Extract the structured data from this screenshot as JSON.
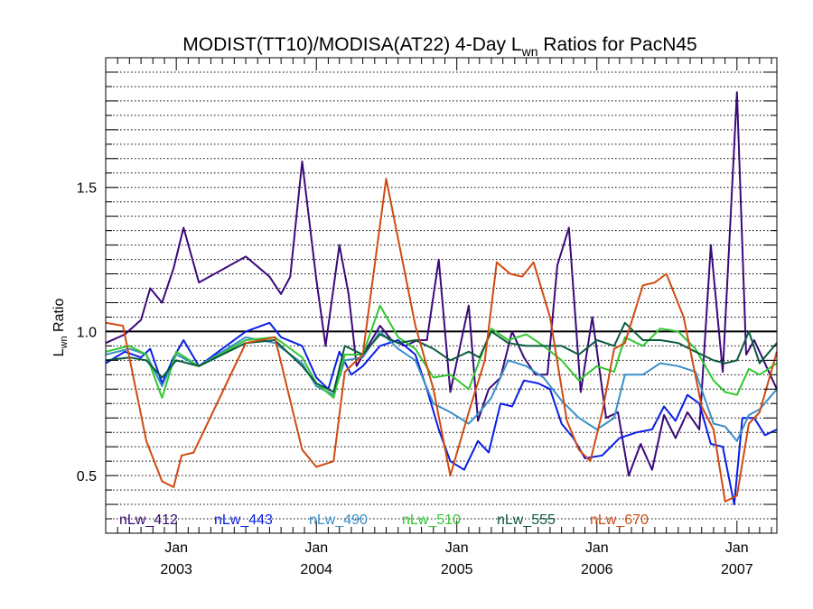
{
  "chart_data": {
    "type": "line",
    "title": {
      "prefix": "MODIST(TT10)/MODISA(AT22) 4-Day L",
      "subscript": "wn",
      "suffix": " Ratios for PacN45"
    },
    "ylabel": {
      "main": "L",
      "subscript": "wn",
      "suffix": " Ratio"
    },
    "ylim": [
      0.3,
      1.95
    ],
    "xlim": [
      "2002-07-01",
      "2007-04-15"
    ],
    "yticks": [
      0.5,
      1.0,
      1.5
    ],
    "ytick_labels": [
      "0.5",
      "1.0",
      "1.5"
    ],
    "xticks": [
      {
        "date": "2003-01-01",
        "month": "Jan",
        "year": "2003"
      },
      {
        "date": "2004-01-01",
        "month": "Jan",
        "year": "2004"
      },
      {
        "date": "2005-01-01",
        "month": "Jan",
        "year": "2005"
      },
      {
        "date": "2006-01-01",
        "month": "Jan",
        "year": "2006"
      },
      {
        "date": "2007-01-01",
        "month": "Jan",
        "year": "2007"
      }
    ],
    "grid": true,
    "grid_style": "dotted horizontal",
    "reference_line": 1.0,
    "legend_position": "bottom inside",
    "series": [
      {
        "name": "nLw_412",
        "color": "#3a0a7a",
        "points": [
          [
            "2002-07-01",
            0.96
          ],
          [
            "2002-08-20",
            0.99
          ],
          [
            "2002-10-01",
            1.04
          ],
          [
            "2002-10-25",
            1.15
          ],
          [
            "2002-11-25",
            1.1
          ],
          [
            "2002-12-25",
            1.22
          ],
          [
            "2003-01-20",
            1.36
          ],
          [
            "2003-03-01",
            1.17
          ],
          [
            "2003-07-01",
            1.26
          ],
          [
            "2003-09-01",
            1.19
          ],
          [
            "2003-10-01",
            1.13
          ],
          [
            "2003-10-25",
            1.19
          ],
          [
            "2003-11-25",
            1.59
          ],
          [
            "2004-01-01",
            1.18
          ],
          [
            "2004-01-25",
            0.95
          ],
          [
            "2004-03-01",
            1.3
          ],
          [
            "2004-03-25",
            1.13
          ],
          [
            "2004-04-15",
            0.88
          ],
          [
            "2004-05-15",
            0.95
          ],
          [
            "2004-06-15",
            1.02
          ],
          [
            "2004-07-15",
            0.97
          ],
          [
            "2004-08-20",
            0.95
          ],
          [
            "2004-09-20",
            0.97
          ],
          [
            "2004-10-15",
            0.97
          ],
          [
            "2004-11-15",
            1.25
          ],
          [
            "2004-12-15",
            0.79
          ],
          [
            "2005-02-01",
            1.09
          ],
          [
            "2005-02-25",
            0.69
          ],
          [
            "2005-03-25",
            0.8
          ],
          [
            "2005-04-25",
            0.84
          ],
          [
            "2005-05-25",
            1.0
          ],
          [
            "2005-06-25",
            0.91
          ],
          [
            "2005-07-25",
            0.85
          ],
          [
            "2005-08-25",
            0.85
          ],
          [
            "2005-09-20",
            1.23
          ],
          [
            "2005-10-20",
            1.36
          ],
          [
            "2005-11-20",
            0.79
          ],
          [
            "2005-12-20",
            1.05
          ],
          [
            "2006-01-25",
            0.7
          ],
          [
            "2006-02-25",
            0.72
          ],
          [
            "2006-03-25",
            0.5
          ],
          [
            "2006-04-25",
            0.61
          ],
          [
            "2006-05-25",
            0.52
          ],
          [
            "2006-06-25",
            0.71
          ],
          [
            "2006-07-25",
            0.63
          ],
          [
            "2006-08-25",
            0.72
          ],
          [
            "2006-09-25",
            0.66
          ],
          [
            "2006-10-25",
            1.3
          ],
          [
            "2006-11-25",
            0.86
          ],
          [
            "2007-01-01",
            1.83
          ],
          [
            "2007-01-25",
            0.92
          ],
          [
            "2007-02-15",
            0.97
          ],
          [
            "2007-04-15",
            0.8
          ]
        ]
      },
      {
        "name": "nLw_443",
        "color": "#0a1ee6",
        "points": [
          [
            "2002-07-01",
            0.89
          ],
          [
            "2002-08-20",
            0.93
          ],
          [
            "2002-10-01",
            0.91
          ],
          [
            "2002-10-25",
            0.94
          ],
          [
            "2002-11-25",
            0.82
          ],
          [
            "2002-12-25",
            0.91
          ],
          [
            "2003-01-20",
            0.97
          ],
          [
            "2003-03-01",
            0.88
          ],
          [
            "2003-05-01",
            0.94
          ],
          [
            "2003-07-01",
            1.0
          ],
          [
            "2003-09-01",
            1.03
          ],
          [
            "2003-10-01",
            0.98
          ],
          [
            "2003-11-25",
            0.95
          ],
          [
            "2004-01-01",
            0.84
          ],
          [
            "2004-02-01",
            0.8
          ],
          [
            "2004-03-01",
            0.93
          ],
          [
            "2004-04-01",
            0.85
          ],
          [
            "2004-05-01",
            0.88
          ],
          [
            "2004-06-15",
            0.95
          ],
          [
            "2004-08-01",
            0.97
          ],
          [
            "2004-09-15",
            0.92
          ],
          [
            "2004-10-15",
            0.8
          ],
          [
            "2004-11-15",
            0.66
          ],
          [
            "2004-12-15",
            0.55
          ],
          [
            "2005-01-20",
            0.52
          ],
          [
            "2005-02-25",
            0.62
          ],
          [
            "2005-03-25",
            0.58
          ],
          [
            "2005-04-25",
            0.75
          ],
          [
            "2005-05-25",
            0.74
          ],
          [
            "2005-06-25",
            0.83
          ],
          [
            "2005-08-01",
            0.82
          ],
          [
            "2005-09-01",
            0.8
          ],
          [
            "2005-10-01",
            0.68
          ],
          [
            "2005-11-01",
            0.63
          ],
          [
            "2005-12-01",
            0.56
          ],
          [
            "2006-01-15",
            0.57
          ],
          [
            "2006-03-01",
            0.63
          ],
          [
            "2006-04-15",
            0.65
          ],
          [
            "2006-05-25",
            0.66
          ],
          [
            "2006-06-25",
            0.74
          ],
          [
            "2006-07-25",
            0.69
          ],
          [
            "2006-08-25",
            0.78
          ],
          [
            "2006-09-25",
            0.75
          ],
          [
            "2006-10-25",
            0.61
          ],
          [
            "2006-11-25",
            0.6
          ],
          [
            "2006-12-25",
            0.4
          ],
          [
            "2007-01-15",
            0.7
          ],
          [
            "2007-02-15",
            0.7
          ],
          [
            "2007-03-15",
            0.64
          ],
          [
            "2007-04-15",
            0.66
          ]
        ]
      },
      {
        "name": "nLw_490",
        "color": "#3a8fc8",
        "points": [
          [
            "2002-07-01",
            0.92
          ],
          [
            "2002-09-01",
            0.94
          ],
          [
            "2002-10-15",
            0.92
          ],
          [
            "2002-11-25",
            0.81
          ],
          [
            "2003-01-01",
            0.92
          ],
          [
            "2003-03-01",
            0.88
          ],
          [
            "2003-07-01",
            0.98
          ],
          [
            "2003-09-15",
            0.96
          ],
          [
            "2003-11-25",
            0.89
          ],
          [
            "2004-01-01",
            0.81
          ],
          [
            "2004-02-15",
            0.78
          ],
          [
            "2004-03-15",
            0.9
          ],
          [
            "2004-05-01",
            0.91
          ],
          [
            "2004-06-15",
            1.0
          ],
          [
            "2004-08-01",
            0.94
          ],
          [
            "2004-09-15",
            0.9
          ],
          [
            "2004-11-01",
            0.75
          ],
          [
            "2004-12-15",
            0.72
          ],
          [
            "2005-02-01",
            0.68
          ],
          [
            "2005-03-01",
            0.72
          ],
          [
            "2005-04-01",
            0.77
          ],
          [
            "2005-05-15",
            0.9
          ],
          [
            "2005-07-01",
            0.88
          ],
          [
            "2005-08-15",
            0.84
          ],
          [
            "2005-10-01",
            0.76
          ],
          [
            "2005-11-15",
            0.7
          ],
          [
            "2006-01-01",
            0.66
          ],
          [
            "2006-02-15",
            0.7
          ],
          [
            "2006-03-15",
            0.85
          ],
          [
            "2006-05-01",
            0.85
          ],
          [
            "2006-06-15",
            0.89
          ],
          [
            "2006-08-01",
            0.88
          ],
          [
            "2006-09-15",
            0.86
          ],
          [
            "2006-11-01",
            0.68
          ],
          [
            "2006-12-01",
            0.67
          ],
          [
            "2007-01-01",
            0.62
          ],
          [
            "2007-02-01",
            0.71
          ],
          [
            "2007-03-01",
            0.73
          ],
          [
            "2007-04-15",
            0.8
          ]
        ]
      },
      {
        "name": "nLw_510",
        "color": "#2fc830",
        "points": [
          [
            "2002-07-01",
            0.93
          ],
          [
            "2002-09-01",
            0.95
          ],
          [
            "2002-10-15",
            0.92
          ],
          [
            "2002-11-25",
            0.77
          ],
          [
            "2003-01-01",
            0.93
          ],
          [
            "2003-03-01",
            0.88
          ],
          [
            "2003-07-01",
            0.97
          ],
          [
            "2003-09-15",
            0.98
          ],
          [
            "2003-11-25",
            0.91
          ],
          [
            "2004-01-01",
            0.82
          ],
          [
            "2004-02-15",
            0.77
          ],
          [
            "2004-03-15",
            0.92
          ],
          [
            "2004-05-01",
            0.92
          ],
          [
            "2004-06-15",
            1.09
          ],
          [
            "2004-08-01",
            0.98
          ],
          [
            "2004-09-15",
            0.94
          ],
          [
            "2004-11-01",
            0.84
          ],
          [
            "2004-12-15",
            0.85
          ],
          [
            "2005-02-01",
            0.8
          ],
          [
            "2005-03-01",
            0.9
          ],
          [
            "2005-04-01",
            1.01
          ],
          [
            "2005-05-15",
            0.97
          ],
          [
            "2005-07-01",
            0.99
          ],
          [
            "2005-08-15",
            0.95
          ],
          [
            "2005-10-01",
            0.9
          ],
          [
            "2005-11-15",
            0.83
          ],
          [
            "2006-01-01",
            0.88
          ],
          [
            "2006-02-15",
            0.86
          ],
          [
            "2006-03-15",
            0.98
          ],
          [
            "2006-05-01",
            0.95
          ],
          [
            "2006-06-15",
            1.01
          ],
          [
            "2006-08-01",
            1.0
          ],
          [
            "2006-09-15",
            0.94
          ],
          [
            "2006-11-01",
            0.83
          ],
          [
            "2006-12-01",
            0.79
          ],
          [
            "2007-01-01",
            0.78
          ],
          [
            "2007-02-01",
            0.87
          ],
          [
            "2007-03-01",
            0.85
          ],
          [
            "2007-04-15",
            0.89
          ]
        ]
      },
      {
        "name": "nLw_555",
        "color": "#0c5a3c",
        "points": [
          [
            "2002-07-01",
            0.9
          ],
          [
            "2002-09-01",
            0.91
          ],
          [
            "2002-10-15",
            0.9
          ],
          [
            "2002-11-25",
            0.84
          ],
          [
            "2003-01-01",
            0.9
          ],
          [
            "2003-03-01",
            0.88
          ],
          [
            "2003-07-01",
            0.96
          ],
          [
            "2003-09-15",
            0.97
          ],
          [
            "2003-11-25",
            0.88
          ],
          [
            "2004-01-01",
            0.82
          ],
          [
            "2004-02-15",
            0.79
          ],
          [
            "2004-03-15",
            0.95
          ],
          [
            "2004-05-01",
            0.92
          ],
          [
            "2004-06-15",
            0.99
          ],
          [
            "2004-08-01",
            0.96
          ],
          [
            "2004-09-15",
            0.97
          ],
          [
            "2004-11-01",
            0.94
          ],
          [
            "2004-12-15",
            0.9
          ],
          [
            "2005-02-01",
            0.93
          ],
          [
            "2005-03-01",
            0.91
          ],
          [
            "2005-04-01",
            1.0
          ],
          [
            "2005-05-15",
            0.96
          ],
          [
            "2005-07-01",
            0.95
          ],
          [
            "2005-08-15",
            0.95
          ],
          [
            "2005-10-01",
            0.95
          ],
          [
            "2005-11-15",
            0.92
          ],
          [
            "2006-01-01",
            0.97
          ],
          [
            "2006-02-15",
            0.95
          ],
          [
            "2006-03-15",
            1.03
          ],
          [
            "2006-05-01",
            0.97
          ],
          [
            "2006-06-15",
            0.97
          ],
          [
            "2006-08-01",
            0.96
          ],
          [
            "2006-09-15",
            0.93
          ],
          [
            "2006-11-01",
            0.9
          ],
          [
            "2006-12-01",
            0.89
          ],
          [
            "2007-01-01",
            0.9
          ],
          [
            "2007-02-01",
            1.0
          ],
          [
            "2007-03-01",
            0.89
          ],
          [
            "2007-04-15",
            0.96
          ]
        ]
      },
      {
        "name": "nLw_670",
        "color": "#d04a10",
        "points": [
          [
            "2002-07-01",
            1.03
          ],
          [
            "2002-08-15",
            1.02
          ],
          [
            "2002-10-15",
            0.62
          ],
          [
            "2002-11-25",
            0.48
          ],
          [
            "2002-12-25",
            0.46
          ],
          [
            "2003-01-15",
            0.57
          ],
          [
            "2003-02-15",
            0.58
          ],
          [
            "2003-07-01",
            0.96
          ],
          [
            "2003-09-15",
            0.98
          ],
          [
            "2003-11-25",
            0.59
          ],
          [
            "2004-01-01",
            0.53
          ],
          [
            "2004-02-15",
            0.55
          ],
          [
            "2004-03-15",
            0.86
          ],
          [
            "2004-05-01",
            0.92
          ],
          [
            "2004-07-01",
            1.53
          ],
          [
            "2004-09-15",
            1.02
          ],
          [
            "2004-11-01",
            0.8
          ],
          [
            "2004-12-15",
            0.5
          ],
          [
            "2005-02-01",
            0.72
          ],
          [
            "2005-03-15",
            0.9
          ],
          [
            "2005-04-15",
            1.24
          ],
          [
            "2005-05-20",
            1.2
          ],
          [
            "2005-06-20",
            1.19
          ],
          [
            "2005-07-20",
            1.24
          ],
          [
            "2005-09-01",
            1.05
          ],
          [
            "2005-10-15",
            0.69
          ],
          [
            "2005-11-15",
            0.59
          ],
          [
            "2005-12-15",
            0.55
          ],
          [
            "2006-01-15",
            0.72
          ],
          [
            "2006-02-15",
            0.94
          ],
          [
            "2006-03-15",
            0.96
          ],
          [
            "2006-05-01",
            1.16
          ],
          [
            "2006-06-01",
            1.17
          ],
          [
            "2006-07-01",
            1.2
          ],
          [
            "2006-08-15",
            1.05
          ],
          [
            "2006-10-01",
            0.74
          ],
          [
            "2006-11-01",
            0.66
          ],
          [
            "2006-12-01",
            0.41
          ],
          [
            "2007-01-01",
            0.43
          ],
          [
            "2007-02-01",
            0.68
          ],
          [
            "2007-03-01",
            0.72
          ],
          [
            "2007-04-15",
            0.93
          ]
        ]
      }
    ]
  }
}
